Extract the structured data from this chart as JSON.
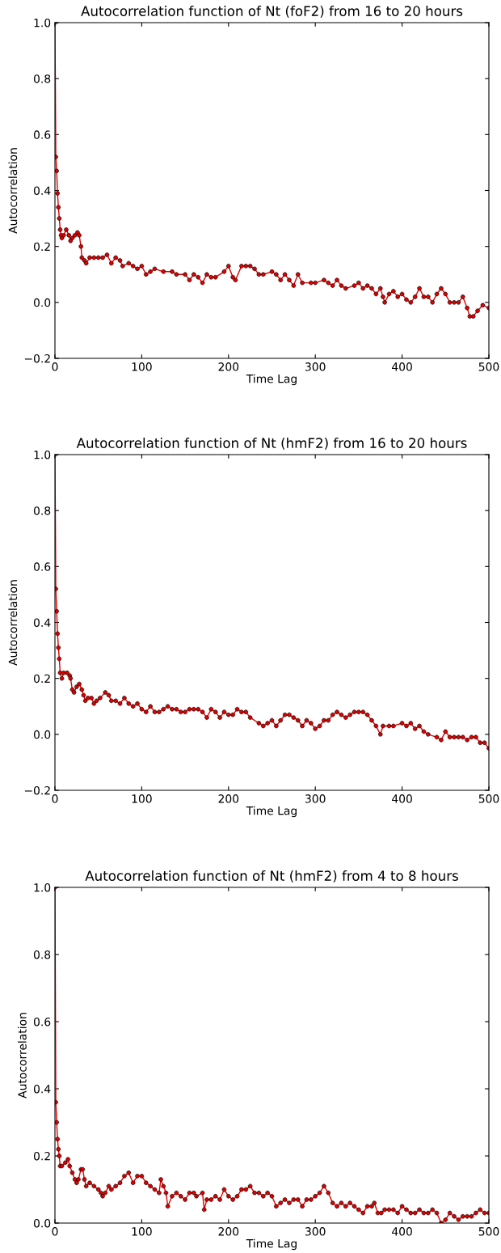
{
  "chart_data": [
    {
      "type": "line",
      "title": "Autocorrelation function of Nt (foF2) from 16 to 20 hours",
      "xlabel": "Time Lag",
      "ylabel": "Autocorrelation",
      "xlim": [
        0,
        500
      ],
      "ylim": [
        -0.2,
        1.0
      ],
      "xticks": [
        0,
        100,
        200,
        300,
        400,
        500
      ],
      "yticks": [
        {
          "value": -0.2,
          "label": "−0.2"
        },
        {
          "value": 0.0,
          "label": "0.0"
        },
        {
          "value": 0.2,
          "label": "0.2"
        },
        {
          "value": 0.4,
          "label": "0.4"
        },
        {
          "value": 0.6,
          "label": "0.6"
        },
        {
          "value": 0.8,
          "label": "0.8"
        },
        {
          "value": 1.0,
          "label": "1.0"
        }
      ],
      "grid": false,
      "marker": "circle",
      "line_style": "solid",
      "series": [
        {
          "color": "#e00000",
          "x": [
            0,
            1,
            2,
            3,
            4,
            5,
            6,
            7,
            8,
            10,
            13,
            16,
            18,
            20,
            23,
            26,
            28,
            30,
            31,
            34,
            36,
            40,
            45,
            50,
            55,
            60,
            65,
            70,
            75,
            78,
            85,
            90,
            95,
            100,
            105,
            110,
            115,
            125,
            135,
            140,
            150,
            155,
            160,
            165,
            170,
            175,
            180,
            185,
            195,
            200,
            205,
            208,
            215,
            220,
            225,
            230,
            235,
            240,
            250,
            255,
            260,
            265,
            270,
            275,
            280,
            285,
            295,
            300,
            310,
            315,
            320,
            325,
            330,
            335,
            345,
            350,
            355,
            360,
            365,
            370,
            375,
            378,
            380,
            385,
            390,
            395,
            400,
            405,
            410,
            415,
            420,
            425,
            430,
            435,
            440,
            445,
            450,
            455,
            460,
            465,
            470,
            475,
            478,
            482,
            487,
            493,
            500
          ],
          "values": [
            1.0,
            0.52,
            0.47,
            0.39,
            0.34,
            0.3,
            0.26,
            0.24,
            0.23,
            0.24,
            0.26,
            0.24,
            0.22,
            0.23,
            0.24,
            0.25,
            0.24,
            0.2,
            0.16,
            0.15,
            0.14,
            0.16,
            0.16,
            0.16,
            0.16,
            0.17,
            0.14,
            0.16,
            0.15,
            0.13,
            0.14,
            0.13,
            0.12,
            0.13,
            0.1,
            0.11,
            0.12,
            0.11,
            0.11,
            0.1,
            0.1,
            0.08,
            0.1,
            0.09,
            0.07,
            0.1,
            0.09,
            0.09,
            0.11,
            0.13,
            0.09,
            0.08,
            0.13,
            0.13,
            0.13,
            0.12,
            0.1,
            0.1,
            0.11,
            0.1,
            0.08,
            0.1,
            0.08,
            0.06,
            0.1,
            0.07,
            0.07,
            0.07,
            0.08,
            0.07,
            0.06,
            0.08,
            0.06,
            0.05,
            0.06,
            0.07,
            0.05,
            0.06,
            0.05,
            0.03,
            0.05,
            0.02,
            0.0,
            0.03,
            0.04,
            0.02,
            0.03,
            0.01,
            0.0,
            0.02,
            0.05,
            0.02,
            0.02,
            0.0,
            0.03,
            0.05,
            0.03,
            0.0,
            0.0,
            0.0,
            0.02,
            -0.02,
            -0.05,
            -0.05,
            -0.03,
            -0.01,
            -0.02
          ]
        }
      ]
    },
    {
      "type": "line",
      "title": "Autocorrelation function of Nt (hmF2) from 16 to 20 hours",
      "xlabel": "Time Lag",
      "ylabel": "Autocorrelation",
      "xlim": [
        0,
        500
      ],
      "ylim": [
        -0.2,
        1.0
      ],
      "xticks": [
        0,
        100,
        200,
        300,
        400,
        500
      ],
      "yticks": [
        {
          "value": -0.2,
          "label": "−0.2"
        },
        {
          "value": 0.0,
          "label": "0.0"
        },
        {
          "value": 0.2,
          "label": "0.2"
        },
        {
          "value": 0.4,
          "label": "0.4"
        },
        {
          "value": 0.6,
          "label": "0.6"
        },
        {
          "value": 0.8,
          "label": "0.8"
        },
        {
          "value": 1.0,
          "label": "1.0"
        }
      ],
      "grid": false,
      "marker": "circle",
      "line_style": "solid",
      "series": [
        {
          "color": "#e00000",
          "x": [
            0,
            1,
            2,
            3,
            4,
            5,
            6,
            8,
            10,
            14,
            17,
            18,
            20,
            22,
            25,
            28,
            31,
            33,
            35,
            38,
            42,
            45,
            48,
            52,
            58,
            62,
            65,
            70,
            75,
            80,
            85,
            90,
            95,
            100,
            105,
            110,
            115,
            120,
            125,
            130,
            135,
            140,
            145,
            150,
            155,
            160,
            165,
            170,
            175,
            180,
            185,
            190,
            195,
            200,
            205,
            210,
            215,
            220,
            225,
            235,
            240,
            245,
            250,
            255,
            260,
            265,
            270,
            275,
            280,
            285,
            290,
            295,
            300,
            305,
            310,
            315,
            320,
            325,
            330,
            335,
            340,
            345,
            350,
            355,
            360,
            365,
            370,
            375,
            378,
            385,
            390,
            400,
            405,
            410,
            415,
            420,
            425,
            430,
            440,
            445,
            450,
            455,
            460,
            465,
            470,
            475,
            480,
            485,
            490,
            495,
            500
          ],
          "values": [
            1.0,
            0.52,
            0.44,
            0.36,
            0.31,
            0.27,
            0.22,
            0.2,
            0.22,
            0.22,
            0.21,
            0.2,
            0.16,
            0.15,
            0.17,
            0.18,
            0.16,
            0.14,
            0.12,
            0.13,
            0.13,
            0.11,
            0.12,
            0.13,
            0.15,
            0.14,
            0.12,
            0.12,
            0.11,
            0.13,
            0.11,
            0.1,
            0.11,
            0.09,
            0.08,
            0.1,
            0.08,
            0.08,
            0.09,
            0.1,
            0.09,
            0.09,
            0.08,
            0.08,
            0.09,
            0.09,
            0.09,
            0.08,
            0.06,
            0.09,
            0.08,
            0.06,
            0.08,
            0.07,
            0.07,
            0.09,
            0.08,
            0.08,
            0.06,
            0.04,
            0.03,
            0.04,
            0.05,
            0.03,
            0.05,
            0.07,
            0.07,
            0.06,
            0.05,
            0.03,
            0.05,
            0.04,
            0.02,
            0.03,
            0.05,
            0.05,
            0.07,
            0.08,
            0.07,
            0.06,
            0.07,
            0.08,
            0.08,
            0.08,
            0.07,
            0.05,
            0.03,
            0.0,
            0.03,
            0.03,
            0.03,
            0.04,
            0.03,
            0.04,
            0.02,
            0.03,
            0.01,
            0.0,
            -0.01,
            -0.02,
            0.01,
            -0.01,
            -0.01,
            -0.01,
            -0.01,
            -0.02,
            -0.01,
            -0.01,
            -0.03,
            -0.03,
            -0.05
          ]
        }
      ]
    },
    {
      "type": "line",
      "title": "Autocorrelation function of Nt (hmF2) from 4 to 8 hours",
      "xlabel": "Time Lag",
      "ylabel": "Autocorrelation",
      "xlim": [
        0,
        500
      ],
      "ylim": [
        0.0,
        1.0
      ],
      "xticks": [
        0,
        100,
        200,
        300,
        400,
        500
      ],
      "yticks": [
        {
          "value": 0.0,
          "label": "0.0"
        },
        {
          "value": 0.2,
          "label": "0.2"
        },
        {
          "value": 0.4,
          "label": "0.4"
        },
        {
          "value": 0.6,
          "label": "0.6"
        },
        {
          "value": 0.8,
          "label": "0.8"
        },
        {
          "value": 1.0,
          "label": "1.0"
        }
      ],
      "grid": false,
      "marker": "circle",
      "line_style": "solid",
      "series": [
        {
          "color": "#e00000",
          "x": [
            0,
            1,
            2,
            3,
            4,
            5,
            6,
            8,
            12,
            15,
            17,
            20,
            23,
            25,
            27,
            30,
            32,
            34,
            36,
            40,
            45,
            50,
            53,
            55,
            58,
            62,
            65,
            70,
            75,
            80,
            85,
            90,
            95,
            100,
            105,
            110,
            115,
            120,
            122,
            125,
            128,
            130,
            135,
            140,
            145,
            150,
            155,
            160,
            163,
            170,
            172,
            175,
            180,
            185,
            190,
            195,
            200,
            205,
            210,
            215,
            220,
            225,
            230,
            235,
            240,
            245,
            250,
            255,
            260,
            265,
            270,
            275,
            280,
            285,
            290,
            295,
            300,
            305,
            310,
            315,
            320,
            325,
            330,
            335,
            340,
            345,
            350,
            355,
            360,
            365,
            368,
            372,
            376,
            380,
            385,
            390,
            395,
            400,
            405,
            410,
            415,
            420,
            425,
            430,
            435,
            440,
            445,
            450,
            455,
            460,
            465,
            470,
            475,
            480,
            485,
            490,
            495,
            500
          ],
          "values": [
            1.0,
            0.36,
            0.3,
            0.25,
            0.22,
            0.2,
            0.17,
            0.17,
            0.18,
            0.19,
            0.17,
            0.15,
            0.13,
            0.12,
            0.13,
            0.16,
            0.16,
            0.13,
            0.11,
            0.12,
            0.11,
            0.1,
            0.09,
            0.08,
            0.09,
            0.11,
            0.1,
            0.11,
            0.12,
            0.14,
            0.15,
            0.12,
            0.14,
            0.14,
            0.12,
            0.11,
            0.1,
            0.09,
            0.13,
            0.11,
            0.09,
            0.05,
            0.08,
            0.09,
            0.08,
            0.07,
            0.09,
            0.09,
            0.08,
            0.09,
            0.04,
            0.07,
            0.07,
            0.08,
            0.07,
            0.1,
            0.08,
            0.07,
            0.08,
            0.1,
            0.1,
            0.11,
            0.09,
            0.09,
            0.08,
            0.09,
            0.08,
            0.05,
            0.06,
            0.07,
            0.06,
            0.07,
            0.07,
            0.05,
            0.07,
            0.07,
            0.08,
            0.09,
            0.11,
            0.09,
            0.06,
            0.05,
            0.06,
            0.05,
            0.06,
            0.05,
            0.04,
            0.03,
            0.05,
            0.05,
            0.06,
            0.03,
            0.03,
            0.04,
            0.04,
            0.04,
            0.03,
            0.05,
            0.04,
            0.03,
            0.03,
            0.04,
            0.03,
            0.03,
            0.04,
            0.03,
            0.0,
            0.01,
            0.03,
            0.02,
            0.01,
            0.02,
            0.02,
            0.02,
            0.03,
            0.04,
            0.03,
            0.03
          ]
        }
      ]
    }
  ]
}
